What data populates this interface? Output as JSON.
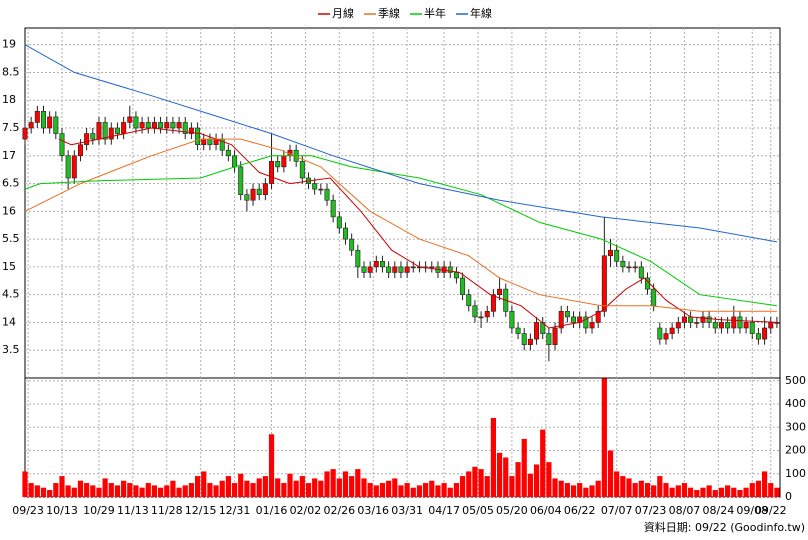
{
  "chart_data": [
    {
      "type": "candlestick",
      "x": [
        0,
        2,
        4,
        6,
        8,
        10,
        12,
        14,
        16,
        18,
        20,
        22,
        24,
        26,
        28,
        30,
        32,
        34,
        36,
        38,
        40,
        42,
        44,
        46,
        48,
        50,
        52,
        54,
        56,
        58,
        60,
        62,
        64,
        66,
        68,
        70,
        72,
        74,
        76,
        78,
        80,
        82,
        84,
        86,
        88,
        90,
        92,
        94,
        96,
        98,
        100,
        102,
        104,
        106,
        108,
        110,
        112,
        114,
        116,
        118,
        120,
        122,
        124,
        126,
        128,
        130,
        132,
        134,
        136,
        138,
        140,
        142,
        144,
        146,
        148,
        150,
        152,
        154,
        156,
        158,
        160,
        162,
        164,
        166,
        168,
        170,
        172,
        174,
        176,
        178,
        180,
        182,
        184,
        186,
        188,
        190,
        192,
        194,
        196,
        198,
        200,
        202,
        204,
        206,
        208,
        210,
        212,
        214,
        216,
        218,
        220,
        222,
        224,
        226,
        228,
        230,
        232,
        234,
        236,
        238,
        240,
        242,
        244
      ],
      "open": [
        17.3,
        17.5,
        17.6,
        17.8,
        17.5,
        17.7,
        17.4,
        17.0,
        16.6,
        17.0,
        17.2,
        17.4,
        17.3,
        17.6,
        17.3,
        17.5,
        17.4,
        17.6,
        17.7,
        17.5,
        17.6,
        17.5,
        17.6,
        17.5,
        17.6,
        17.5,
        17.6,
        17.4,
        17.5,
        17.2,
        17.3,
        17.2,
        17.3,
        17.1,
        17.0,
        16.8,
        16.3,
        16.2,
        16.4,
        16.3,
        16.5,
        16.9,
        16.8,
        17.0,
        17.1,
        16.9,
        16.6,
        16.5,
        16.4,
        16.4,
        16.2,
        15.9,
        15.7,
        15.5,
        15.3,
        15.0,
        14.9,
        15.0,
        15.1,
        15.0,
        14.9,
        15.0,
        14.9,
        15.0,
        15.0,
        15.0,
        15.0,
        15.0,
        14.9,
        15.0,
        14.9,
        14.8,
        14.5,
        14.3,
        14.1,
        14.1,
        14.2,
        14.5,
        14.6,
        14.2,
        13.9,
        13.8,
        13.6,
        13.7,
        14.0,
        13.8,
        13.6,
        13.9,
        14.2,
        14.1,
        14.0,
        14.1,
        13.9,
        14.0,
        14.2,
        15.2,
        15.3,
        15.1,
        15.0,
        15.0,
        15.0,
        14.8,
        14.6,
        13.9,
        13.7,
        13.8,
        13.9,
        14.0,
        14.1,
        14.0,
        14.0,
        14.1,
        14.0,
        13.9,
        14.0,
        13.9,
        14.1,
        13.9,
        14.0,
        13.8,
        13.7,
        13.9,
        14.0
      ],
      "high": [
        17.6,
        17.7,
        17.9,
        17.9,
        17.8,
        17.8,
        17.5,
        17.1,
        17.1,
        17.3,
        17.5,
        17.5,
        17.7,
        17.7,
        17.6,
        17.6,
        17.7,
        17.9,
        17.8,
        17.7,
        17.7,
        17.7,
        17.7,
        17.7,
        17.7,
        17.7,
        17.7,
        17.6,
        17.6,
        17.4,
        17.4,
        17.4,
        17.4,
        17.2,
        17.1,
        16.9,
        16.4,
        16.5,
        16.5,
        16.6,
        17.4,
        17.0,
        17.1,
        17.2,
        17.2,
        17.0,
        16.7,
        16.6,
        16.5,
        16.5,
        16.3,
        16.0,
        15.8,
        15.6,
        15.4,
        15.1,
        15.1,
        15.2,
        15.2,
        15.1,
        15.1,
        15.1,
        15.1,
        15.1,
        15.1,
        15.1,
        15.1,
        15.1,
        15.1,
        15.1,
        15.0,
        14.9,
        14.6,
        14.4,
        14.2,
        14.3,
        14.6,
        14.8,
        14.7,
        14.3,
        14.0,
        13.9,
        13.8,
        14.1,
        14.1,
        13.9,
        14.0,
        14.3,
        14.3,
        14.2,
        14.2,
        14.2,
        14.1,
        14.3,
        15.9,
        15.5,
        15.4,
        15.2,
        15.1,
        15.1,
        15.1,
        14.9,
        14.7,
        14.0,
        13.9,
        14.0,
        14.1,
        14.2,
        14.2,
        14.1,
        14.2,
        14.2,
        14.1,
        14.1,
        14.1,
        14.3,
        14.2,
        14.1,
        14.1,
        13.9,
        14.1,
        14.1,
        14.1
      ],
      "low": [
        17.2,
        17.4,
        17.5,
        17.4,
        17.4,
        17.3,
        16.9,
        16.4,
        16.5,
        16.9,
        17.1,
        17.2,
        17.2,
        17.2,
        17.2,
        17.3,
        17.3,
        17.5,
        17.4,
        17.4,
        17.4,
        17.4,
        17.4,
        17.4,
        17.4,
        17.4,
        17.3,
        17.3,
        17.1,
        17.1,
        17.1,
        17.1,
        17.0,
        16.9,
        16.7,
        16.2,
        16.0,
        16.1,
        16.2,
        16.2,
        16.4,
        16.7,
        16.7,
        16.9,
        16.8,
        16.5,
        16.4,
        16.3,
        16.3,
        16.1,
        15.8,
        15.6,
        15.4,
        15.2,
        14.8,
        14.8,
        14.8,
        14.9,
        14.9,
        14.8,
        14.8,
        14.8,
        14.8,
        14.9,
        14.9,
        14.9,
        14.9,
        14.8,
        14.8,
        14.8,
        14.7,
        14.4,
        14.2,
        14.0,
        13.9,
        14.0,
        14.1,
        14.4,
        14.1,
        13.8,
        13.7,
        13.5,
        13.5,
        13.6,
        13.7,
        13.3,
        13.5,
        13.8,
        14.0,
        13.9,
        13.9,
        13.8,
        13.8,
        13.9,
        14.1,
        15.0,
        15.0,
        14.9,
        14.9,
        14.9,
        14.7,
        14.5,
        14.2,
        13.6,
        13.6,
        13.7,
        13.8,
        13.9,
        13.9,
        13.9,
        13.9,
        13.9,
        13.8,
        13.8,
        13.8,
        13.8,
        13.8,
        13.8,
        13.7,
        13.6,
        13.6,
        13.8,
        13.9
      ],
      "close": [
        17.5,
        17.6,
        17.8,
        17.5,
        17.7,
        17.4,
        17.0,
        16.6,
        17.0,
        17.2,
        17.4,
        17.3,
        17.6,
        17.3,
        17.5,
        17.4,
        17.6,
        17.7,
        17.5,
        17.6,
        17.5,
        17.6,
        17.5,
        17.6,
        17.5,
        17.6,
        17.4,
        17.5,
        17.2,
        17.3,
        17.2,
        17.3,
        17.1,
        17.0,
        16.8,
        16.3,
        16.2,
        16.4,
        16.3,
        16.5,
        16.9,
        16.8,
        17.0,
        17.1,
        16.9,
        16.6,
        16.5,
        16.4,
        16.4,
        16.2,
        15.9,
        15.7,
        15.5,
        15.3,
        15.0,
        14.9,
        15.0,
        15.1,
        15.0,
        14.9,
        15.0,
        14.9,
        15.0,
        15.0,
        15.0,
        15.0,
        15.0,
        14.9,
        15.0,
        14.9,
        14.8,
        14.5,
        14.3,
        14.1,
        14.1,
        14.2,
        14.5,
        14.6,
        14.2,
        13.9,
        13.8,
        13.6,
        13.7,
        14.0,
        13.8,
        13.6,
        13.9,
        14.2,
        14.1,
        14.0,
        14.1,
        13.9,
        14.0,
        14.2,
        15.2,
        15.3,
        15.1,
        15.0,
        15.0,
        15.0,
        14.8,
        14.6,
        14.3,
        13.7,
        13.8,
        13.9,
        14.0,
        14.1,
        14.0,
        14.0,
        14.1,
        14.0,
        13.9,
        14.0,
        13.9,
        14.1,
        13.9,
        14.0,
        13.8,
        13.7,
        13.9,
        14.0,
        14.0
      ],
      "up_color": "#ff0000",
      "down_color": "#22bb22",
      "lines": [
        {
          "name": "月線",
          "color": "#cc0000",
          "x": [
            11,
            15,
            24,
            41,
            57,
            67,
            76,
            86,
            99,
            109,
            119,
            128,
            141,
            151,
            161,
            170,
            180,
            187,
            195,
            201,
            208,
            216,
            226,
            244
          ],
          "values": [
            17.3,
            17.2,
            17.3,
            17.5,
            17.4,
            17.2,
            16.7,
            16.5,
            16.6,
            16.0,
            15.3,
            15.0,
            14.9,
            14.5,
            14.3,
            13.9,
            14.0,
            14.2,
            14.6,
            14.8,
            14.4,
            14.1,
            14.05,
            14.0
          ]
        },
        {
          "name": "季線",
          "color": "#e87020",
          "x": [
            0,
            18,
            41,
            57,
            70,
            83,
            96,
            112,
            128,
            144,
            154,
            167,
            187,
            203,
            219,
            244
          ],
          "values": [
            16.0,
            16.5,
            17.0,
            17.3,
            17.3,
            17.1,
            16.8,
            16.0,
            15.5,
            15.2,
            14.8,
            14.5,
            14.3,
            14.3,
            14.2,
            14.2
          ]
        },
        {
          "name": "半年",
          "color": "#00cc00",
          "x": [
            0,
            5,
            24,
            57,
            68,
            80,
            93,
            106,
            128,
            148,
            167,
            187,
            203,
            219,
            244
          ],
          "values": [
            16.4,
            16.5,
            16.55,
            16.6,
            16.8,
            17.0,
            17.0,
            16.8,
            16.6,
            16.3,
            15.8,
            15.5,
            15.1,
            14.5,
            14.3
          ]
        },
        {
          "name": "年線",
          "color": "#2266cc",
          "x": [
            0,
            16,
            40,
            60,
            80,
            100,
            128,
            154,
            187,
            219,
            244
          ],
          "values": [
            19.0,
            18.5,
            18.1,
            17.75,
            17.4,
            17.0,
            16.5,
            16.2,
            15.9,
            15.7,
            15.45
          ]
        }
      ],
      "xlim": [
        0,
        245
      ],
      "xticks": [
        {
          "value": 1,
          "label": "09/23"
        },
        {
          "value": 12,
          "label": "10/13"
        },
        {
          "value": 24,
          "label": "10/29"
        },
        {
          "value": 35,
          "label": "11/13"
        },
        {
          "value": 46,
          "label": "11/28"
        },
        {
          "value": 57,
          "label": "12/15"
        },
        {
          "value": 68,
          "label": "12/31"
        },
        {
          "value": 80,
          "label": "01/16"
        },
        {
          "value": 91,
          "label": "02/02"
        },
        {
          "value": 102,
          "label": "02/26"
        },
        {
          "value": 113,
          "label": "03/16"
        },
        {
          "value": 124,
          "label": "03/31"
        },
        {
          "value": 136,
          "label": "04/17"
        },
        {
          "value": 147,
          "label": "05/05"
        },
        {
          "value": 158,
          "label": "05/20"
        },
        {
          "value": 169,
          "label": "06/04"
        },
        {
          "value": 180,
          "label": "06/22"
        },
        {
          "value": 192,
          "label": "07/07"
        },
        {
          "value": 203,
          "label": "07/23"
        },
        {
          "value": 214,
          "label": "08/07"
        },
        {
          "value": 225,
          "label": "08/24"
        },
        {
          "value": 236,
          "label": "09/08"
        },
        {
          "value": 242,
          "label": "09/22"
        }
      ],
      "ylim": [
        13.0,
        19.3
      ],
      "yticks": [
        19,
        {
          "value": 18.5,
          "label": "8.5"
        },
        18,
        {
          "value": 17.5,
          "label": "7.5"
        },
        17,
        {
          "value": 16.5,
          "label": "6.5"
        },
        16,
        {
          "value": 15.5,
          "label": "5.5"
        },
        15,
        {
          "value": 14.5,
          "label": "4.5"
        },
        14,
        {
          "value": 13.5,
          "label": "3.5"
        }
      ],
      "grid": true
    },
    {
      "type": "bar",
      "color": "#ff0000",
      "values": [
        110,
        60,
        50,
        40,
        30,
        60,
        90,
        50,
        40,
        70,
        60,
        50,
        40,
        80,
        60,
        50,
        70,
        60,
        50,
        40,
        60,
        50,
        40,
        50,
        70,
        40,
        50,
        60,
        90,
        110,
        60,
        50,
        70,
        90,
        60,
        100,
        70,
        60,
        80,
        90,
        270,
        80,
        60,
        100,
        70,
        90,
        60,
        80,
        70,
        110,
        120,
        80,
        110,
        90,
        120,
        80,
        60,
        50,
        60,
        70,
        80,
        50,
        60,
        40,
        50,
        60,
        70,
        50,
        60,
        40,
        60,
        90,
        110,
        130,
        120,
        90,
        340,
        190,
        170,
        90,
        150,
        250,
        100,
        140,
        290,
        150,
        80,
        70,
        60,
        50,
        60,
        40,
        50,
        70,
        510,
        200,
        110,
        90,
        80,
        60,
        70,
        60,
        50,
        90,
        60,
        40,
        50,
        60,
        40,
        30,
        40,
        50,
        30,
        40,
        50,
        40,
        30,
        40,
        60,
        70,
        110,
        60,
        40
      ],
      "ylim": [
        0,
        512
      ],
      "yticks": [
        0,
        100,
        200,
        300,
        400,
        500
      ],
      "grid": true,
      "footnote": "資料日期: 09/22 (Goodinfo.tw)"
    }
  ]
}
